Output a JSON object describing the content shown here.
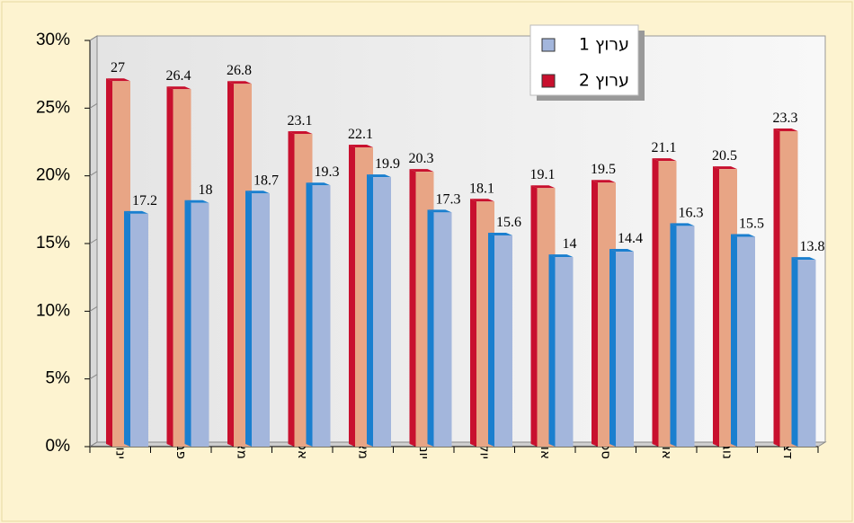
{
  "chart_data": {
    "type": "bar3d",
    "categories": [
      "ינואר",
      "פברואר",
      "מארס",
      "אפריל",
      "מאי",
      "יוני",
      "יולי",
      "אוגוסט",
      "ספטמבר",
      "אוקטובר",
      "נובמבר",
      "דצמבר"
    ],
    "series": [
      {
        "name": "ערוץ 2",
        "color": "#e8a585",
        "edge_color": "#c8102e",
        "values": [
          27,
          26.4,
          26.8,
          23.1,
          22.1,
          20.3,
          18.1,
          19.1,
          19.5,
          21.1,
          20.5,
          23.3
        ]
      },
      {
        "name": "ערוץ 1",
        "color": "#a3b6dc",
        "edge_color": "#1a7fcf",
        "values": [
          17.2,
          18,
          18.7,
          19.3,
          19.9,
          17.3,
          15.6,
          14,
          14.4,
          16.3,
          15.5,
          13.8
        ]
      }
    ],
    "ylim": [
      0,
      30
    ],
    "yticks": [
      {
        "value": 0,
        "label": "0%"
      },
      {
        "value": 5,
        "label": "5%"
      },
      {
        "value": 10,
        "label": "10%"
      },
      {
        "value": 15,
        "label": "15%"
      },
      {
        "value": 20,
        "label": "20%"
      },
      {
        "value": 25,
        "label": "25%"
      },
      {
        "value": 30,
        "label": "30%"
      }
    ]
  }
}
